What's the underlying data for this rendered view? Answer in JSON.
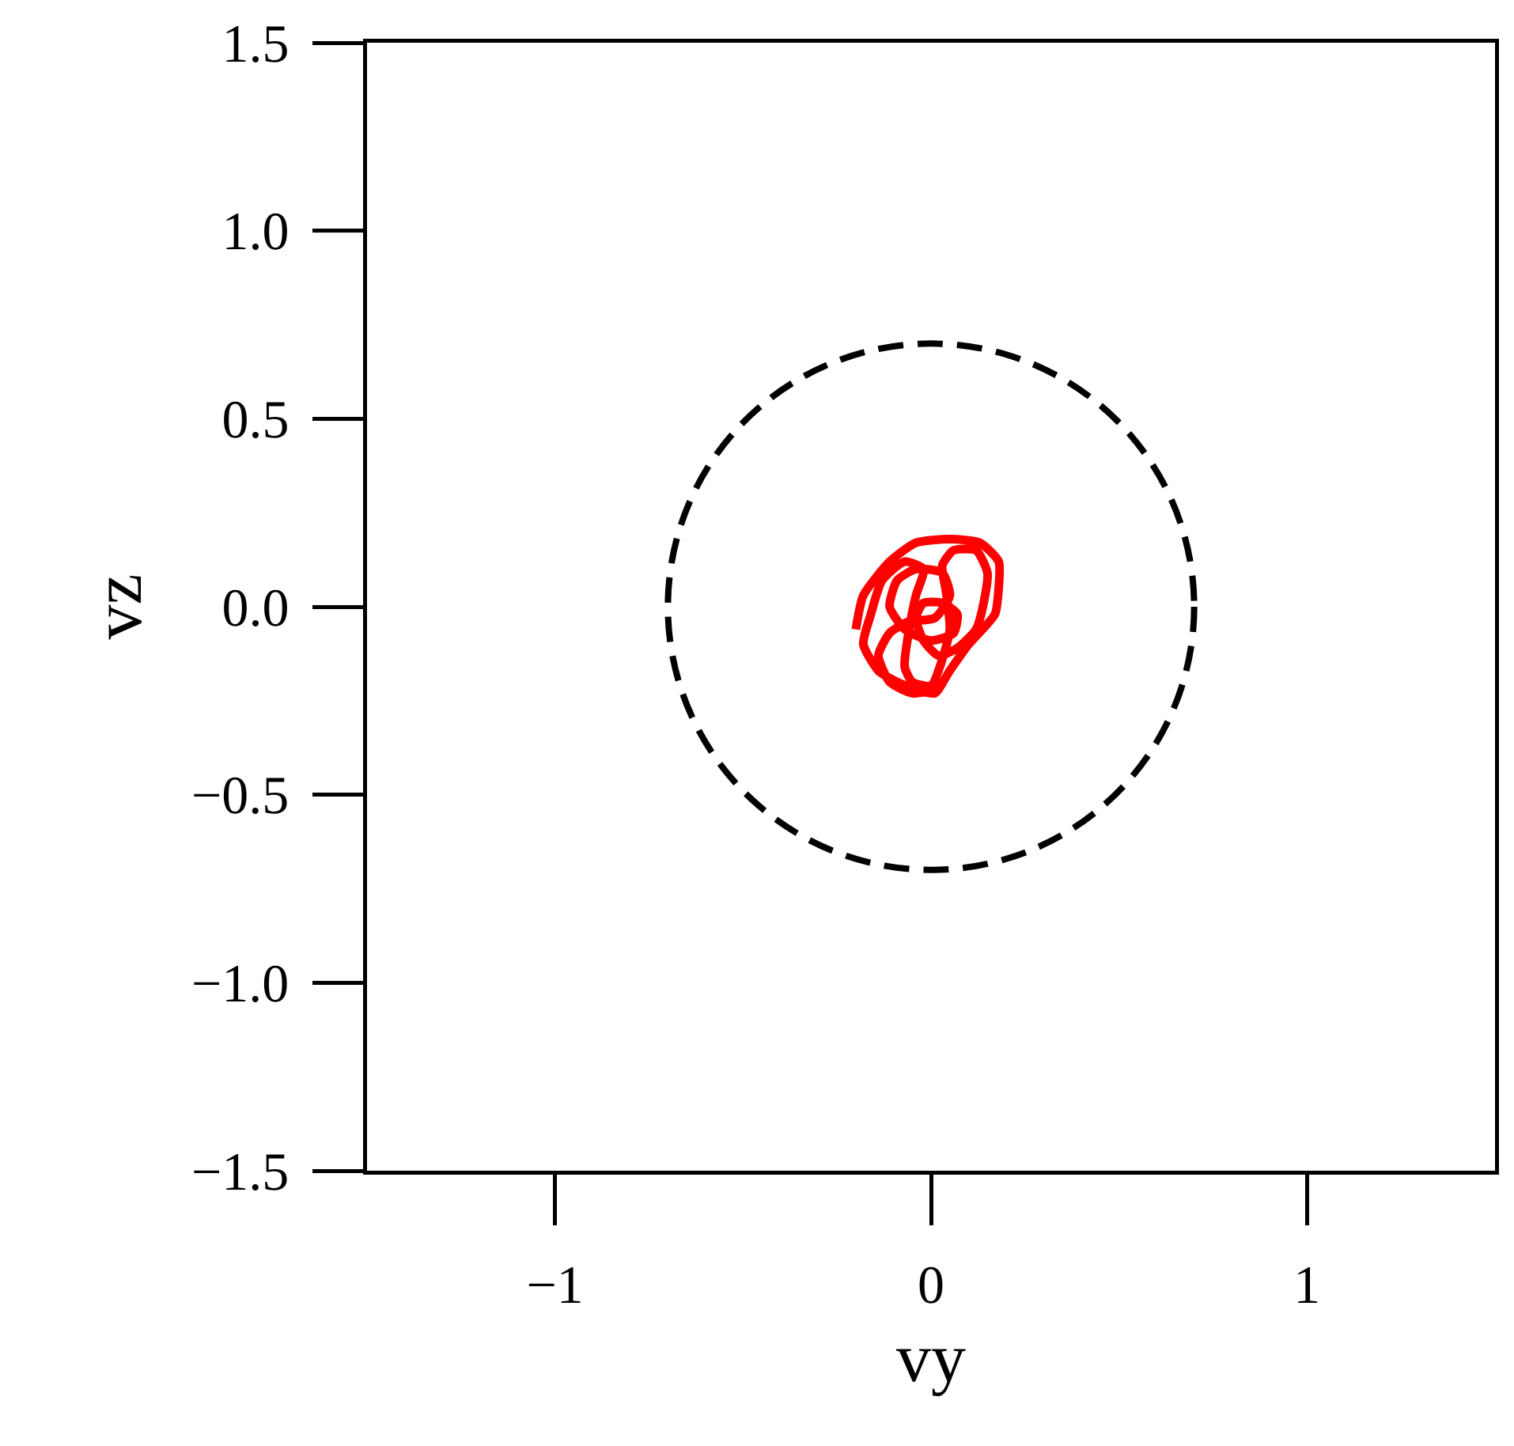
{
  "chart_data": {
    "type": "line",
    "xlabel": "vy",
    "ylabel": "vz",
    "xlim": [
      -1.5,
      1.5
    ],
    "xticks": [
      {
        "value": -1,
        "label": "−1"
      },
      0,
      1
    ],
    "ylim": [
      -1.5,
      1.5
    ],
    "yticks": [
      {
        "value": -1.5,
        "label": "−1.5"
      },
      {
        "value": -1.0,
        "label": "−1.0"
      },
      {
        "value": -0.5,
        "label": "−0.5"
      },
      {
        "value": 0.0,
        "label": "0.0"
      },
      0.5,
      {
        "value": 1.0,
        "label": "1.0"
      },
      1.5
    ],
    "grid": false,
    "marker": "none",
    "line_style": "solid",
    "series": [
      {
        "color": "#ff0000",
        "x": [
          -0.2,
          -0.18,
          -0.11,
          -0.04,
          0.05,
          0.13,
          0.18,
          0.18,
          0.17,
          0.1,
          0.05,
          0.01,
          -0.04,
          -0.09,
          -0.14,
          -0.18,
          -0.16,
          -0.13,
          -0.07,
          -0.02,
          -0.04,
          -0.06,
          -0.07,
          -0.05,
          0.0,
          0.03,
          0.05,
          0.04,
          0.03,
          0.06,
          0.12,
          0.15,
          0.14,
          0.12,
          0.07,
          0.02,
          -0.02,
          -0.04,
          -0.02,
          0.03,
          0.07,
          0.06,
          0.0,
          -0.07,
          -0.11,
          -0.09,
          -0.04,
          0.03,
          0.05,
          0.01,
          -0.06,
          -0.11,
          -0.14,
          -0.11,
          -0.05,
          0.01
        ],
        "values": [
          -0.06,
          0.03,
          0.12,
          0.17,
          0.18,
          0.17,
          0.12,
          0.05,
          -0.02,
          -0.1,
          -0.17,
          -0.23,
          -0.22,
          -0.2,
          -0.17,
          -0.1,
          -0.02,
          0.07,
          0.12,
          0.1,
          0.03,
          -0.07,
          -0.16,
          -0.2,
          -0.21,
          -0.14,
          -0.06,
          0.04,
          0.11,
          0.15,
          0.15,
          0.09,
          0.01,
          -0.06,
          -0.11,
          -0.13,
          -0.09,
          -0.03,
          0.01,
          0.01,
          -0.02,
          -0.07,
          -0.09,
          -0.06,
          0.0,
          0.07,
          0.1,
          0.09,
          0.03,
          -0.03,
          -0.04,
          -0.07,
          -0.13,
          -0.2,
          -0.23,
          -0.22
        ]
      }
    ]
  }
}
